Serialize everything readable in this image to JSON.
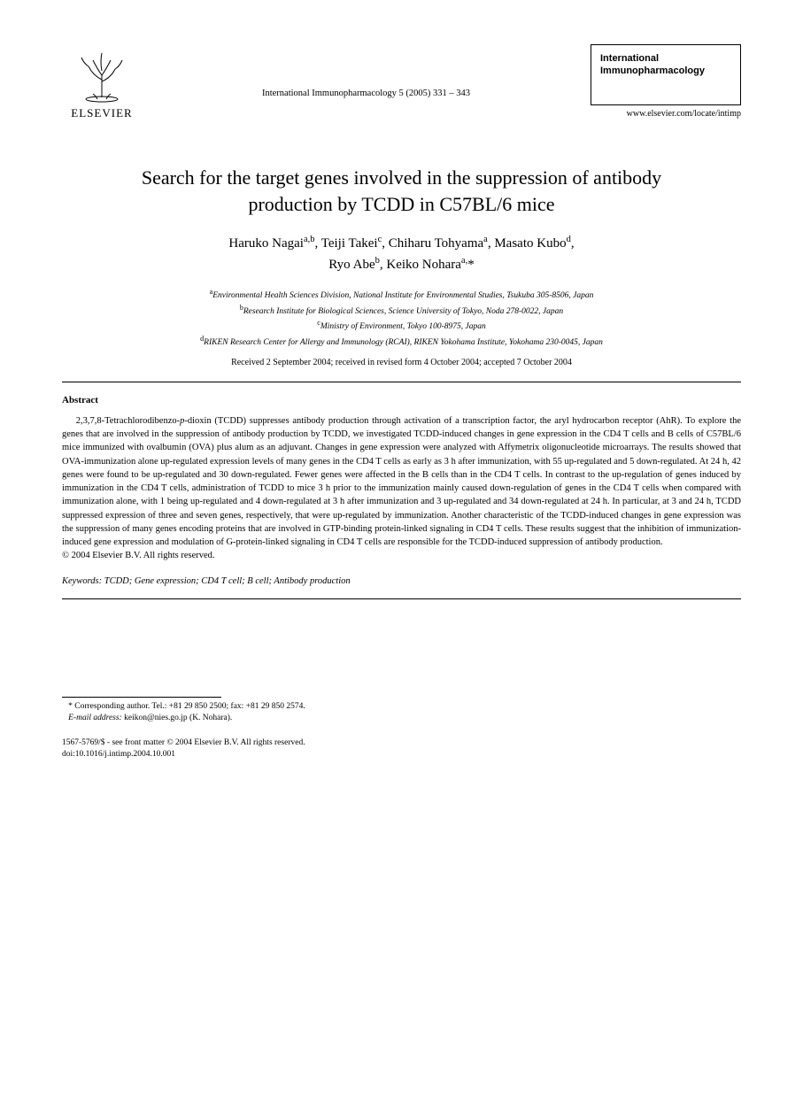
{
  "header": {
    "publisher": "ELSEVIER",
    "journal_ref": "International Immunopharmacology 5 (2005) 331 – 343",
    "journal_box_line1": "International",
    "journal_box_line2": "Immunopharmacology",
    "journal_url": "www.elsevier.com/locate/intimp"
  },
  "title_line1": "Search for the target genes involved in the suppression of antibody",
  "title_line2": "production by TCDD in C57BL/6 mice",
  "authors_line1_html": "Haruko Nagai<sup>a,b</sup>, Teiji Takei<sup>c</sup>, Chiharu Tohyama<sup>a</sup>, Masato Kubo<sup>d</sup>,",
  "authors_line2_html": "Ryo Abe<sup>b</sup>, Keiko Nohara<sup>a,</sup>*",
  "affiliations": {
    "a": "Environmental Health Sciences Division, National Institute for Environmental Studies, Tsukuba 305-8506, Japan",
    "b": "Research Institute for Biological Sciences, Science University of Tokyo, Noda 278-0022, Japan",
    "c": "Ministry of Environment, Tokyo 100-8975, Japan",
    "d": "RIKEN Research Center for Allergy and Immunology (RCAI), RIKEN Yokohama Institute, Yokohama 230-0045, Japan"
  },
  "dates": "Received 2 September 2004; received in revised form 4 October 2004; accepted 7 October 2004",
  "abstract_heading": "Abstract",
  "abstract_html": "2,3,7,8-Tetrachlorodibenzo-<span class=\"ital\">p</span>-dioxin (TCDD) suppresses antibody production through activation of a transcription factor, the aryl hydrocarbon receptor (AhR). To explore the genes that are involved in the suppression of antibody production by TCDD, we investigated TCDD-induced changes in gene expression in the CD4 T cells and B cells of C57BL/6 mice immunized with ovalbumin (OVA) plus alum as an adjuvant. Changes in gene expression were analyzed with Affymetrix oligonucleotide microarrays. The results showed that OVA-immunization alone up-regulated expression levels of many genes in the CD4 T cells as early as 3 h after immunization, with 55 up-regulated and 5 down-regulated. At 24 h, 42 genes were found to be up-regulated and 30 down-regulated. Fewer genes were affected in the B cells than in the CD4 T cells. In contrast to the up-regulation of genes induced by immunization in the CD4 T cells, administration of TCDD to mice 3 h prior to the immunization mainly caused down-regulation of genes in the CD4 T cells when compared with immunization alone, with 1 being up-regulated and 4 down-regulated at 3 h after immunization and 3 up-regulated and 34 down-regulated at 24 h. In particular, at 3 and 24 h, TCDD suppressed expression of three and seven genes, respectively, that were up-regulated by immunization. Another characteristic of the TCDD-induced changes in gene expression was the suppression of many genes encoding proteins that are involved in GTP-binding protein-linked signaling in CD4 T cells. These results suggest that the inhibition of immunization-induced gene expression and modulation of G-protein-linked signaling in CD4 T cells are responsible for the TCDD-induced suppression of antibody production.",
  "copyright": "© 2004 Elsevier B.V. All rights reserved.",
  "keywords_label": "Keywords:",
  "keywords_value": " TCDD; Gene expression; CD4 T cell; B cell; Antibody production",
  "footnote_line1": "* Corresponding author. Tel.: +81 29 850 2500; fax: +81 29 850 2574.",
  "footnote_line2_label": "E-mail address:",
  "footnote_line2_value": " keikon@nies.go.jp (K. Nohara).",
  "footer_line1": "1567-5769/$ - see front matter © 2004 Elsevier B.V. All rights reserved.",
  "footer_line2": "doi:10.1016/j.intimp.2004.10.001",
  "colors": {
    "text": "#000000",
    "background": "#ffffff",
    "rule": "#000000"
  },
  "typography": {
    "title_fontsize": 22,
    "authors_fontsize": 15,
    "body_fontsize": 10.5,
    "affil_fontsize": 9.5,
    "footnote_fontsize": 9.5
  }
}
